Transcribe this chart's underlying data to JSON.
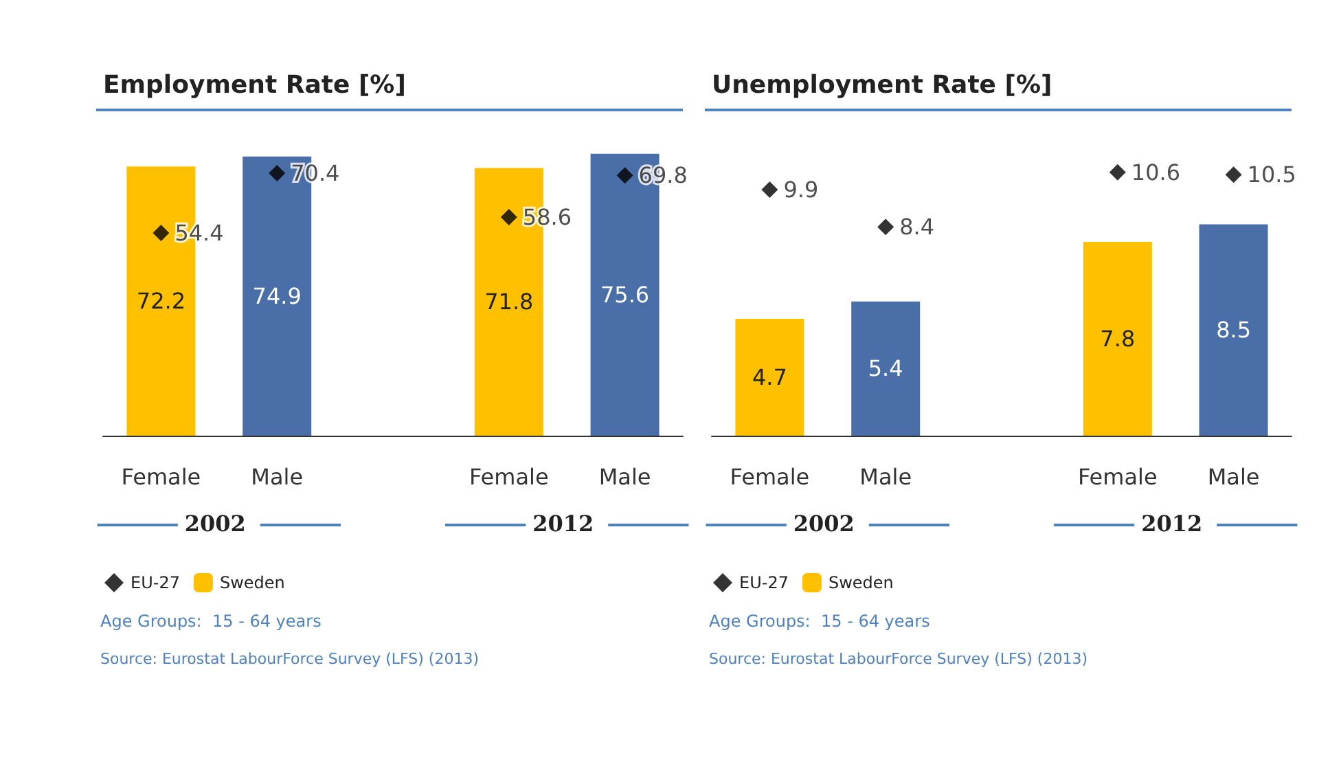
{
  "chart_data": [
    {
      "type": "bar",
      "title": "Employment Rate [%]",
      "categories": [
        "Female",
        "Male",
        null,
        "Female",
        "Male"
      ],
      "series": [
        {
          "name": "EU-27",
          "type": "scatter",
          "marker": "diamond",
          "color": "#000000",
          "values": [
            54.4,
            70.4,
            null,
            58.6,
            69.8
          ]
        },
        {
          "name": "Sweden",
          "type": "bar",
          "colors": [
            "#ffc000",
            "#4a6ea8",
            null,
            "#ffc000",
            "#4a6ea8"
          ],
          "values": [
            72.2,
            74.9,
            null,
            71.8,
            75.6
          ]
        }
      ],
      "data_labels": true,
      "grid": false,
      "legend": "bottom left",
      "annotations": [
        "2002",
        "2012",
        "Age Groups:  15 - 64 years",
        "Source: Eurostat LabourForce Survey (LFS) (2013)"
      ]
    },
    {
      "type": "bar",
      "title": "Unemployment Rate [%]",
      "categories": [
        "Female",
        "Male",
        null,
        "Female",
        "Male"
      ],
      "series": [
        {
          "name": "EU-27",
          "type": "scatter",
          "marker": "diamond",
          "color": "#000000",
          "values": [
            9.9,
            8.4,
            null,
            10.6,
            10.5
          ]
        },
        {
          "name": "Sweden",
          "type": "bar",
          "colors": [
            "#ffc000",
            "#4a6ea8",
            null,
            "#ffc000",
            "#4a6ea8"
          ],
          "values": [
            4.7,
            5.4,
            null,
            7.8,
            8.5
          ]
        }
      ],
      "data_labels": true,
      "grid": false,
      "legend": "bottom left",
      "annotations": [
        "2002",
        "2012",
        "Age Groups:  15 - 64 years",
        "Source: Eurostat LabourForce Survey (LFS) (2013)"
      ]
    }
  ]
}
